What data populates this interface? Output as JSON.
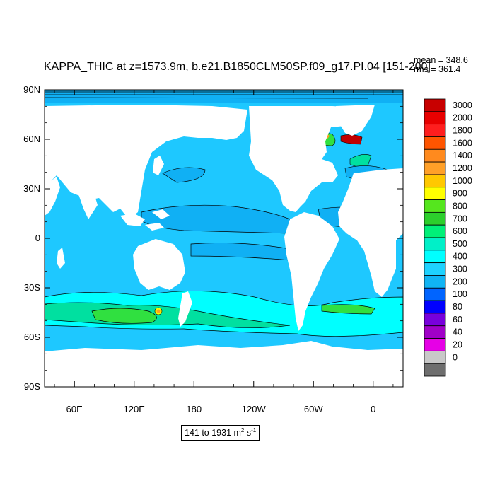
{
  "title": "KAPPA_THIC at z=1573.9m, b.e21.B1850CLM50SP.f09_g17.PI.04 [151-200]",
  "stats": {
    "mean": "mean = 348.6",
    "rms": "rms = 361.4"
  },
  "range": {
    "text": "141 to 1931 m",
    "unit1_exp": "2",
    "unit2": " s",
    "unit2_exp": "-1"
  },
  "map": {
    "lon_range": [
      30,
      390
    ],
    "lat_range": [
      -90,
      90
    ],
    "lat_ticks": [
      {
        "lat": 90,
        "label": "90N"
      },
      {
        "lat": 60,
        "label": "60N"
      },
      {
        "lat": 30,
        "label": "30N"
      },
      {
        "lat": 0,
        "label": "0"
      },
      {
        "lat": -30,
        "label": "30S"
      },
      {
        "lat": -60,
        "label": "60S"
      },
      {
        "lat": -90,
        "label": "90S"
      }
    ],
    "lon_ticks": [
      {
        "lon": 60,
        "label": "60E"
      },
      {
        "lon": 120,
        "label": "120E"
      },
      {
        "lon": 180,
        "label": "180"
      },
      {
        "lon": 240,
        "label": "120W"
      },
      {
        "lon": 300,
        "label": "60W"
      },
      {
        "lon": 360,
        "label": "0"
      }
    ],
    "colors": {
      "ocean_base": "#1ec8ff",
      "band_300": "#10b0f4",
      "band_500": "#00ffff",
      "band_600": "#00e0a0",
      "band_700": "#30e040",
      "band_900": "#f8ff00",
      "band_1200": "#ffa020",
      "band_3000": "#c00000",
      "land": "#ffffff"
    }
  },
  "colorbar": {
    "levels": [
      "3000",
      "2000",
      "1800",
      "1600",
      "1400",
      "1200",
      "1000",
      "900",
      "800",
      "700",
      "600",
      "500",
      "400",
      "300",
      "200",
      "100",
      "80",
      "60",
      "40",
      "20",
      "0"
    ],
    "colors": [
      "#c80000",
      "#e80000",
      "#ff1e1e",
      "#ff5500",
      "#ff8a1e",
      "#ffa028",
      "#ffc800",
      "#ffff00",
      "#55e61e",
      "#2ccf2c",
      "#00f078",
      "#00f0c8",
      "#00ffff",
      "#1ed2ff",
      "#10b4f4",
      "#0064ff",
      "#0000ff",
      "#7800dc",
      "#a000c8",
      "#e600e6",
      "#c8c8c8",
      "#6e6e6e"
    ]
  }
}
